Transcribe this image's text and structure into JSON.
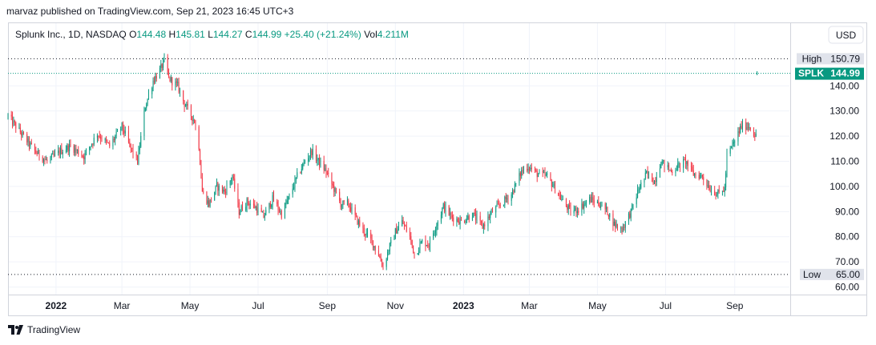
{
  "header": {
    "publish_line": "marvaz published on TradingView.com, Sep 21, 2023 16:45 UTC+3"
  },
  "legend": {
    "symbol": "Splunk Inc., 1D, NASDAQ",
    "open_label": "O",
    "open_value": "144.48",
    "high_label": "H",
    "high_value": "145.81",
    "low_label": "L",
    "low_value": "144.27",
    "close_label": "C",
    "close_value": "144.99",
    "change_value": "+25.40 (+21.24%)",
    "volume_label": "Vol",
    "volume_value": "4.211M"
  },
  "currency_button": "USD",
  "price_tags": {
    "high_label": "High",
    "high_value": "150.79",
    "last_symbol": "SPLK",
    "last_value": "144.99",
    "low_label": "Low",
    "low_value": "65.00"
  },
  "footer": {
    "brand": "TradingView"
  },
  "colors": {
    "up": "#089981",
    "down": "#f23645",
    "grid": "#f0f3fa",
    "axis_text": "#131722",
    "tag_gray": "#e0e3eb"
  },
  "chart_data": {
    "type": "candlestick",
    "title": "Splunk Inc., 1D, NASDAQ",
    "ylim": [
      57,
      156
    ],
    "y_ticks": [
      60,
      70,
      80,
      90,
      100,
      110,
      120,
      130,
      140
    ],
    "y_tick_labels": [
      "60.00",
      "70.00",
      "80.00",
      "90.00",
      "100.00",
      "110.00",
      "120.00",
      "130.00",
      "140.00"
    ],
    "x_ticks": [
      {
        "label": "2022",
        "date": "2022-01-01",
        "bold": true
      },
      {
        "label": "Mar",
        "date": "2022-03-01"
      },
      {
        "label": "May",
        "date": "2022-05-01"
      },
      {
        "label": "Jul",
        "date": "2022-07-01"
      },
      {
        "label": "Sep",
        "date": "2022-09-01"
      },
      {
        "label": "Nov",
        "date": "2022-11-01"
      },
      {
        "label": "2023",
        "date": "2023-01-01",
        "bold": true
      },
      {
        "label": "Mar",
        "date": "2023-03-01"
      },
      {
        "label": "May",
        "date": "2023-05-01"
      },
      {
        "label": "Jul",
        "date": "2023-07-01"
      },
      {
        "label": "Sep",
        "date": "2023-09-01"
      }
    ],
    "x_range": [
      "2021-11-19",
      "2023-10-20"
    ],
    "high_line": 150.79,
    "low_line": 65.0,
    "last_price": 144.99,
    "path": [
      [
        "2021-11-19",
        128
      ],
      [
        "2021-12-01",
        121
      ],
      [
        "2021-12-13",
        114
      ],
      [
        "2021-12-24",
        110
      ],
      [
        "2022-01-05",
        114
      ],
      [
        "2022-01-14",
        116
      ],
      [
        "2022-01-26",
        112
      ],
      [
        "2022-02-07",
        121
      ],
      [
        "2022-02-18",
        116
      ],
      [
        "2022-03-01",
        124
      ],
      [
        "2022-03-08",
        116
      ],
      [
        "2022-03-15",
        110
      ],
      [
        "2022-03-22",
        132
      ],
      [
        "2022-03-29",
        142
      ],
      [
        "2022-04-05",
        147
      ],
      [
        "2022-04-08",
        150
      ],
      [
        "2022-04-12",
        143
      ],
      [
        "2022-04-20",
        140
      ],
      [
        "2022-04-26",
        133
      ],
      [
        "2022-05-05",
        126
      ],
      [
        "2022-05-09",
        116
      ],
      [
        "2022-05-12",
        98
      ],
      [
        "2022-05-18",
        93
      ],
      [
        "2022-05-25",
        100
      ],
      [
        "2022-06-01",
        98
      ],
      [
        "2022-06-08",
        104
      ],
      [
        "2022-06-14",
        90
      ],
      [
        "2022-06-21",
        94
      ],
      [
        "2022-06-28",
        92
      ],
      [
        "2022-07-06",
        88
      ],
      [
        "2022-07-14",
        95
      ],
      [
        "2022-07-22",
        89
      ],
      [
        "2022-07-29",
        96
      ],
      [
        "2022-08-05",
        104
      ],
      [
        "2022-08-12",
        110
      ],
      [
        "2022-08-18",
        114
      ],
      [
        "2022-08-24",
        110
      ],
      [
        "2022-08-31",
        106
      ],
      [
        "2022-09-06",
        100
      ],
      [
        "2022-09-13",
        93
      ],
      [
        "2022-09-20",
        93
      ],
      [
        "2022-09-27",
        87
      ],
      [
        "2022-10-04",
        82
      ],
      [
        "2022-10-11",
        78
      ],
      [
        "2022-10-17",
        73
      ],
      [
        "2022-10-21",
        68
      ],
      [
        "2022-10-26",
        75
      ],
      [
        "2022-11-01",
        82
      ],
      [
        "2022-11-07",
        86
      ],
      [
        "2022-11-14",
        80
      ],
      [
        "2022-11-18",
        73
      ],
      [
        "2022-11-25",
        78
      ],
      [
        "2022-12-01",
        77
      ],
      [
        "2022-12-07",
        84
      ],
      [
        "2022-12-14",
        92
      ],
      [
        "2022-12-21",
        88
      ],
      [
        "2022-12-30",
        86
      ],
      [
        "2023-01-09",
        89
      ],
      [
        "2023-01-18",
        84
      ],
      [
        "2023-01-27",
        90
      ],
      [
        "2023-02-06",
        94
      ],
      [
        "2023-02-13",
        97
      ],
      [
        "2023-02-22",
        106
      ],
      [
        "2023-02-28",
        108
      ],
      [
        "2023-03-08",
        105
      ],
      [
        "2023-03-17",
        104
      ],
      [
        "2023-03-24",
        99
      ],
      [
        "2023-03-31",
        94
      ],
      [
        "2023-04-07",
        90
      ],
      [
        "2023-04-14",
        91
      ],
      [
        "2023-04-24",
        95
      ],
      [
        "2023-05-03",
        93
      ],
      [
        "2023-05-10",
        90
      ],
      [
        "2023-05-16",
        85
      ],
      [
        "2023-05-23",
        83
      ],
      [
        "2023-05-31",
        90
      ],
      [
        "2023-06-07",
        99
      ],
      [
        "2023-06-14",
        105
      ],
      [
        "2023-06-21",
        102
      ],
      [
        "2023-06-27",
        110
      ],
      [
        "2023-07-06",
        106
      ],
      [
        "2023-07-12",
        108
      ],
      [
        "2023-07-19",
        110
      ],
      [
        "2023-07-26",
        105
      ],
      [
        "2023-08-03",
        104
      ],
      [
        "2023-08-10",
        99
      ],
      [
        "2023-08-17",
        97
      ],
      [
        "2023-08-23",
        99
      ],
      [
        "2023-08-25",
        112
      ],
      [
        "2023-09-01",
        118
      ],
      [
        "2023-09-07",
        124
      ],
      [
        "2023-09-14",
        124
      ],
      [
        "2023-09-20",
        120
      ]
    ],
    "last_candle": {
      "date": "2023-09-21",
      "open": 144.48,
      "high": 145.81,
      "low": 144.27,
      "close": 144.99
    }
  }
}
